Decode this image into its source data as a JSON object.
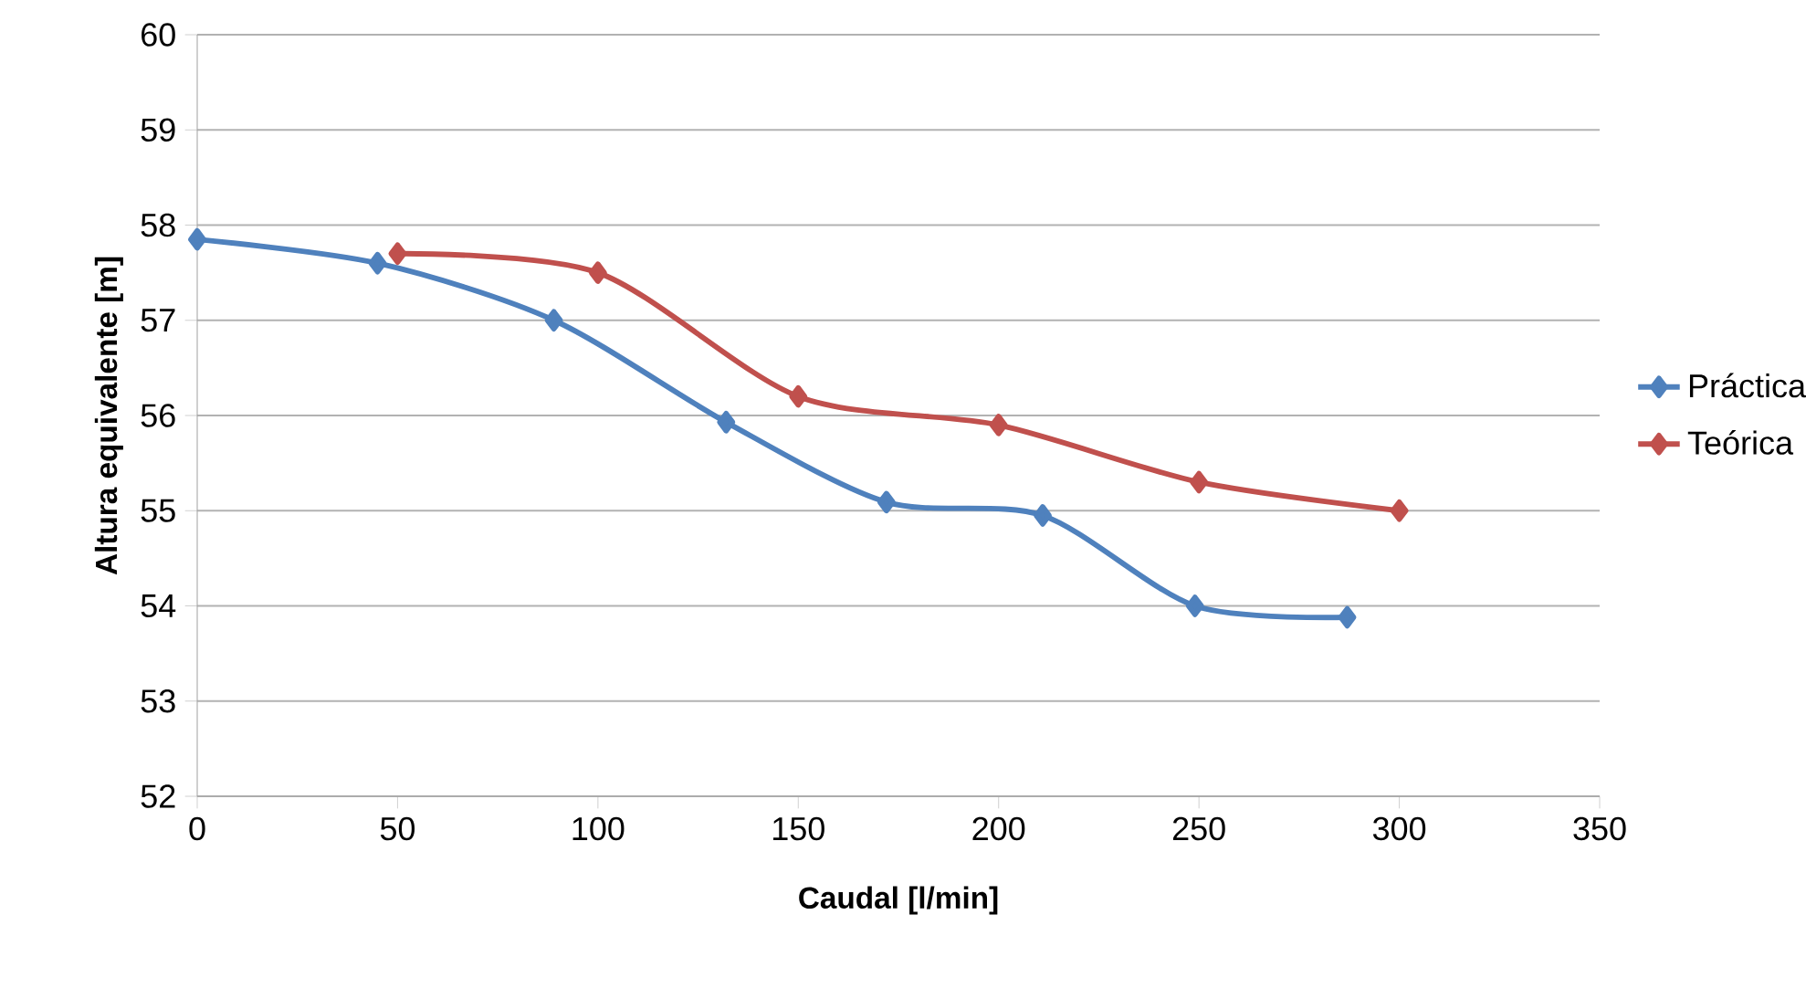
{
  "chart_data": {
    "type": "line",
    "xlabel": "Caudal [l/min]",
    "ylabel": "Altura equivalente [m]",
    "xlim": [
      0,
      350
    ],
    "xticks": [
      0,
      50,
      100,
      150,
      200,
      250,
      300,
      350
    ],
    "ylim": [
      52,
      60
    ],
    "yticks": [
      52,
      53,
      54,
      55,
      56,
      57,
      58,
      59,
      60
    ],
    "grid": "y",
    "legend": "right",
    "marker": "diamond",
    "line_style": "solid",
    "series": [
      {
        "name": "Práctica",
        "color": "#4f81bd",
        "x": [
          0,
          45,
          89,
          132,
          172,
          211,
          249,
          287
        ],
        "values": [
          57.85,
          57.6,
          57.0,
          55.93,
          55.09,
          54.95,
          54.0,
          53.88
        ]
      },
      {
        "name": "Teórica",
        "color": "#c0504d",
        "x": [
          50,
          100,
          150,
          200,
          250,
          300
        ],
        "values": [
          57.7,
          57.5,
          56.2,
          55.9,
          55.3,
          55.0
        ]
      }
    ]
  }
}
